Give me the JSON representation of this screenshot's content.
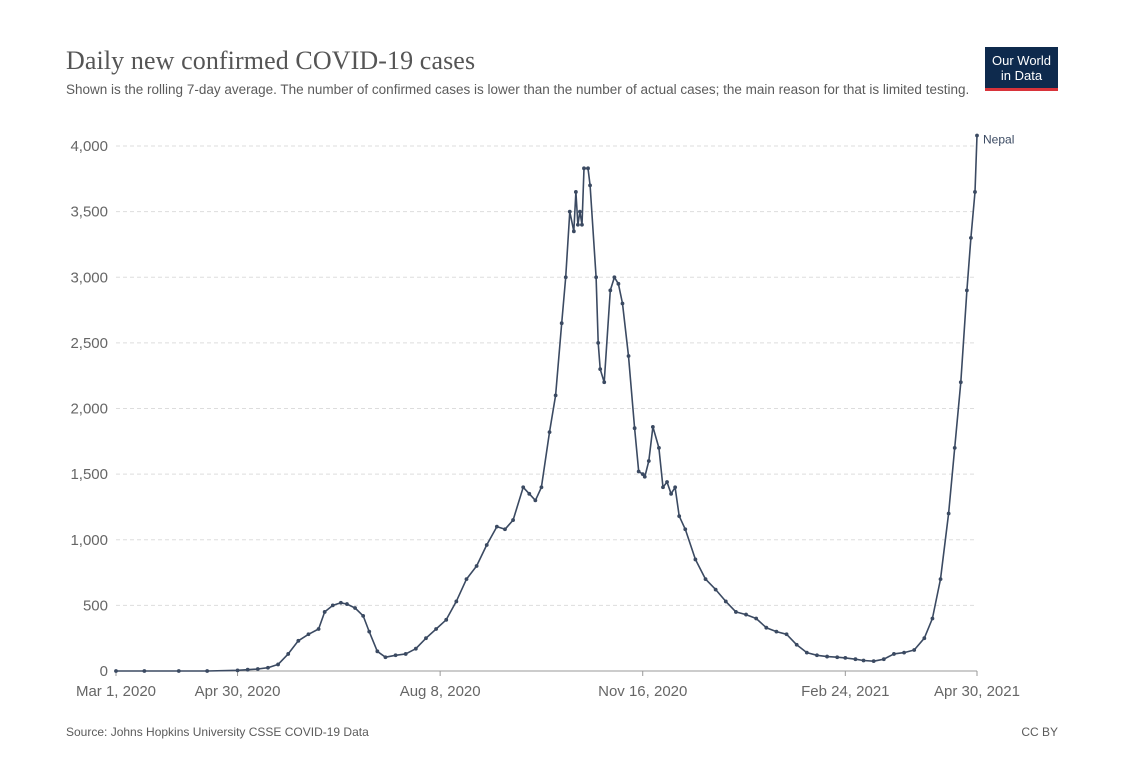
{
  "header": {
    "title": "Daily new confirmed COVID-19 cases",
    "subtitle": "Shown is the rolling 7-day average. The number of confirmed cases is lower than the number of actual cases; the main reason for that is limited testing.",
    "logo_line1": "Our World",
    "logo_line2": "in Data"
  },
  "footer": {
    "source": "Source: Johns Hopkins University CSSE COVID-19 Data",
    "license": "CC BY"
  },
  "colors": {
    "line": "#3b4a62",
    "grid": "#dddddd",
    "logo_bg": "#0e2a4d",
    "logo_accent": "#d8333a"
  },
  "chart_data": {
    "type": "line",
    "title": "Daily new confirmed COVID-19 cases",
    "xlabel": "",
    "ylabel": "",
    "x_range": [
      "2020-03-01",
      "2021-04-30"
    ],
    "ylim": [
      0,
      4000
    ],
    "y_ticks": [
      0,
      500,
      1000,
      1500,
      2000,
      2500,
      3000,
      3500,
      4000
    ],
    "y_tick_labels": [
      "0",
      "500",
      "1,000",
      "1,500",
      "2,000",
      "2,500",
      "3,000",
      "3,500",
      "4,000"
    ],
    "x_ticks": [
      "2020-03-01",
      "2020-04-30",
      "2020-08-08",
      "2020-11-16",
      "2021-02-24",
      "2021-04-30"
    ],
    "x_tick_labels": [
      "Mar 1, 2020",
      "Apr 30, 2020",
      "Aug 8, 2020",
      "Nov 16, 2020",
      "Feb 24, 2021",
      "Apr 30, 2021"
    ],
    "grid": "horizontal dashed",
    "series": [
      {
        "name": "Nepal",
        "points": [
          [
            "2020-03-01",
            0
          ],
          [
            "2020-03-15",
            0
          ],
          [
            "2020-04-01",
            0
          ],
          [
            "2020-04-15",
            0
          ],
          [
            "2020-04-30",
            5
          ],
          [
            "2020-05-05",
            10
          ],
          [
            "2020-05-10",
            15
          ],
          [
            "2020-05-15",
            25
          ],
          [
            "2020-05-20",
            50
          ],
          [
            "2020-05-25",
            130
          ],
          [
            "2020-05-30",
            230
          ],
          [
            "2020-06-04",
            280
          ],
          [
            "2020-06-09",
            320
          ],
          [
            "2020-06-12",
            450
          ],
          [
            "2020-06-16",
            500
          ],
          [
            "2020-06-20",
            520
          ],
          [
            "2020-06-23",
            510
          ],
          [
            "2020-06-27",
            480
          ],
          [
            "2020-07-01",
            420
          ],
          [
            "2020-07-04",
            300
          ],
          [
            "2020-07-08",
            150
          ],
          [
            "2020-07-12",
            105
          ],
          [
            "2020-07-17",
            120
          ],
          [
            "2020-07-22",
            130
          ],
          [
            "2020-07-27",
            170
          ],
          [
            "2020-08-01",
            250
          ],
          [
            "2020-08-06",
            320
          ],
          [
            "2020-08-11",
            390
          ],
          [
            "2020-08-16",
            530
          ],
          [
            "2020-08-21",
            700
          ],
          [
            "2020-08-26",
            800
          ],
          [
            "2020-08-31",
            960
          ],
          [
            "2020-09-05",
            1100
          ],
          [
            "2020-09-09",
            1080
          ],
          [
            "2020-09-13",
            1150
          ],
          [
            "2020-09-18",
            1400
          ],
          [
            "2020-09-21",
            1350
          ],
          [
            "2020-09-24",
            1300
          ],
          [
            "2020-09-27",
            1400
          ],
          [
            "2020-10-01",
            1820
          ],
          [
            "2020-10-04",
            2100
          ],
          [
            "2020-10-07",
            2650
          ],
          [
            "2020-10-09",
            3000
          ],
          [
            "2020-10-11",
            3500
          ],
          [
            "2020-10-13",
            3350
          ],
          [
            "2020-10-14",
            3650
          ],
          [
            "2020-10-15",
            3400
          ],
          [
            "2020-10-16",
            3500
          ],
          [
            "2020-10-17",
            3400
          ],
          [
            "2020-10-18",
            3830
          ],
          [
            "2020-10-20",
            3830
          ],
          [
            "2020-10-21",
            3700
          ],
          [
            "2020-10-24",
            3000
          ],
          [
            "2020-10-25",
            2500
          ],
          [
            "2020-10-26",
            2300
          ],
          [
            "2020-10-28",
            2200
          ],
          [
            "2020-10-31",
            2900
          ],
          [
            "2020-11-02",
            3000
          ],
          [
            "2020-11-04",
            2950
          ],
          [
            "2020-11-06",
            2800
          ],
          [
            "2020-11-09",
            2400
          ],
          [
            "2020-11-12",
            1850
          ],
          [
            "2020-11-14",
            1520
          ],
          [
            "2020-11-16",
            1500
          ],
          [
            "2020-11-17",
            1480
          ],
          [
            "2020-11-19",
            1600
          ],
          [
            "2020-11-21",
            1860
          ],
          [
            "2020-11-24",
            1700
          ],
          [
            "2020-11-26",
            1400
          ],
          [
            "2020-11-28",
            1440
          ],
          [
            "2020-11-30",
            1350
          ],
          [
            "2020-12-02",
            1400
          ],
          [
            "2020-12-04",
            1180
          ],
          [
            "2020-12-07",
            1080
          ],
          [
            "2020-12-12",
            850
          ],
          [
            "2020-12-17",
            700
          ],
          [
            "2020-12-22",
            620
          ],
          [
            "2020-12-27",
            530
          ],
          [
            "2021-01-01",
            450
          ],
          [
            "2021-01-06",
            430
          ],
          [
            "2021-01-11",
            400
          ],
          [
            "2021-01-16",
            330
          ],
          [
            "2021-01-21",
            300
          ],
          [
            "2021-01-26",
            280
          ],
          [
            "2021-01-31",
            200
          ],
          [
            "2021-02-05",
            140
          ],
          [
            "2021-02-10",
            120
          ],
          [
            "2021-02-15",
            110
          ],
          [
            "2021-02-20",
            105
          ],
          [
            "2021-02-24",
            100
          ],
          [
            "2021-03-01",
            90
          ],
          [
            "2021-03-05",
            80
          ],
          [
            "2021-03-10",
            75
          ],
          [
            "2021-03-15",
            90
          ],
          [
            "2021-03-20",
            130
          ],
          [
            "2021-03-25",
            140
          ],
          [
            "2021-03-30",
            160
          ],
          [
            "2021-04-04",
            250
          ],
          [
            "2021-04-08",
            400
          ],
          [
            "2021-04-12",
            700
          ],
          [
            "2021-04-16",
            1200
          ],
          [
            "2021-04-19",
            1700
          ],
          [
            "2021-04-22",
            2200
          ],
          [
            "2021-04-25",
            2900
          ],
          [
            "2021-04-27",
            3300
          ],
          [
            "2021-04-29",
            3650
          ],
          [
            "2021-04-30",
            4080
          ]
        ]
      }
    ]
  }
}
